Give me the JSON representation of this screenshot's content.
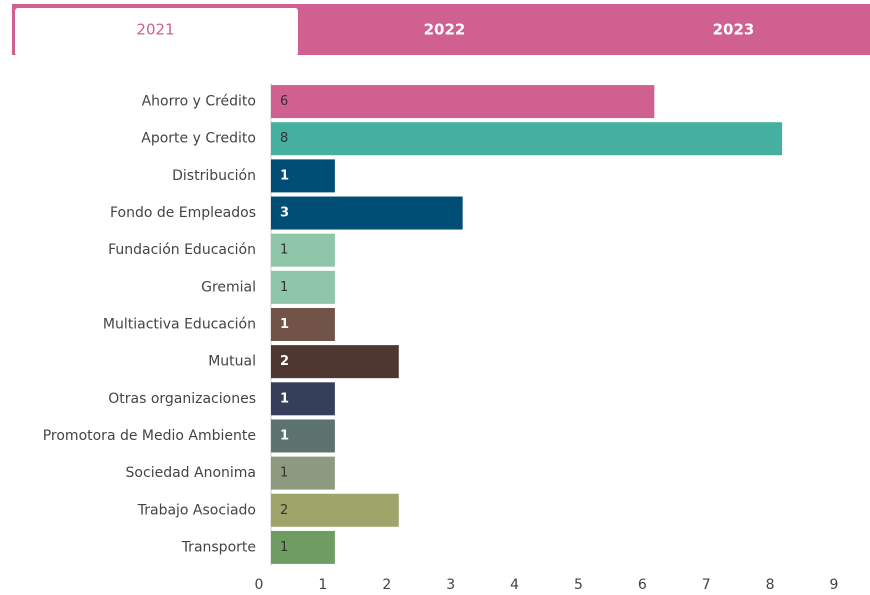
{
  "tabs": {
    "items": [
      "2021",
      "2022",
      "2023"
    ],
    "active": 0
  },
  "chart_data": {
    "type": "bar",
    "orientation": "horizontal",
    "categories": [
      "Ahorro y Crédito",
      "Aporte y Credito",
      "Distribución",
      "Fondo de Empleados",
      "Fundación Educación",
      "Gremial",
      "Multiactiva Educación",
      "Mutual",
      "Otras organizaciones",
      "Promotora de Medio Ambiente",
      "Sociedad Anonima",
      "Trabajo Asociado",
      "Transporte"
    ],
    "values": [
      6,
      8,
      1,
      3,
      1,
      1,
      1,
      2,
      1,
      1,
      1,
      2,
      1
    ],
    "colors": [
      "#d06090",
      "#45b0a0",
      "#004d75",
      "#004d75",
      "#8fc5a8",
      "#8fc5a8",
      "#715447",
      "#4d3730",
      "#353f5a",
      "#5d7370",
      "#8e9a80",
      "#9da56a",
      "#6f9c62"
    ],
    "xlim": [
      0,
      9
    ],
    "xticks": [
      0,
      1,
      2,
      3,
      4,
      5,
      6,
      7,
      8,
      9
    ],
    "grid": false
  }
}
